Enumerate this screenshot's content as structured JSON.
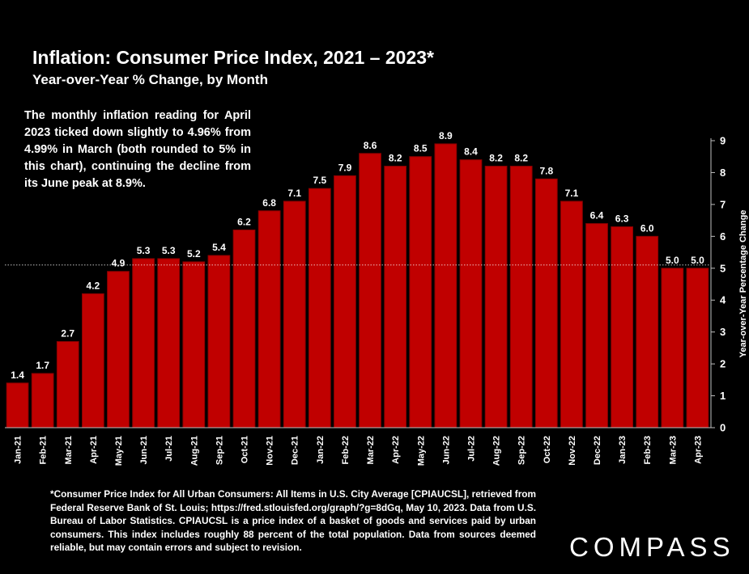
{
  "chart_data": {
    "type": "bar",
    "title": "Inflation: Consumer Price Index, 2021 – 2023*",
    "subtitle": "Year-over-Year % Change, by Month",
    "categories": [
      "Jan-21",
      "Feb-21",
      "Mar-21",
      "Apr-21",
      "May-21",
      "Jun-21",
      "Jul-21",
      "Aug-21",
      "Sep-21",
      "Oct-21",
      "Nov-21",
      "Dec-21",
      "Jan-22",
      "Feb-22",
      "Mar-22",
      "Apr-22",
      "May-22",
      "Jun-22",
      "Jul-22",
      "Aug-22",
      "Sep-22",
      "Oct-22",
      "Nov-22",
      "Dec-22",
      "Jan-23",
      "Feb-23",
      "Mar-23",
      "Apr-23"
    ],
    "values": [
      1.4,
      1.7,
      2.7,
      4.2,
      4.9,
      5.3,
      5.3,
      5.2,
      5.4,
      6.2,
      6.8,
      7.1,
      7.5,
      7.9,
      8.6,
      8.2,
      8.5,
      8.9,
      8.4,
      8.2,
      8.2,
      7.8,
      7.1,
      6.4,
      6.3,
      6.0,
      5.0,
      5.0
    ],
    "value_labels": [
      "1.4",
      "1.7",
      "2.7",
      "4.2",
      "4.9",
      "5.3",
      "5.3",
      "5.2",
      "5.4",
      "6.2",
      "6.8",
      "7.1",
      "7.5",
      "7.9",
      "8.6",
      "8.2",
      "8.5",
      "8.9",
      "8.4",
      "8.2",
      "8.2",
      "7.8",
      "7.1",
      "6.4",
      "6.3",
      "6.0",
      "5.0",
      "5.0"
    ],
    "xlabel": "",
    "ylabel": "Year-over-Year Percentage Change",
    "ylim": [
      0,
      9
    ],
    "yticks": [
      "0",
      "1",
      "2",
      "3",
      "4",
      "5",
      "6",
      "7",
      "8",
      "9"
    ],
    "y_axis_position": "right",
    "reference_line": 5.1,
    "grid": false,
    "bar_color": "#c00000",
    "bar_edge_color": "#8b0000",
    "reference_line_color": "#ffffff"
  },
  "annotation": "The monthly inflation reading for April 2023 ticked down slightly to 4.96% from 4.99% in March (both rounded to 5% in this chart), continuing the decline from its June peak at 8.9%.",
  "footnote": "*Consumer Price Index for All Urban Consumers: All Items in U.S. City Average [CPIAUCSL], retrieved from Federal Reserve Bank of St. Louis; https://fred.stlouisfed.org/graph/?g=8dGq, May 10, 2023. Data from U.S. Bureau of Labor Statistics. CPIAUCSL is a price index of a basket of goods and services paid by urban consumers. This index includes roughly 88 percent of the total population. Data from sources deemed reliable, but may contain errors and subject to revision.",
  "brand": "COMPASS",
  "colors": {
    "background": "#000000",
    "text": "#ffffff",
    "bar": "#c00000"
  }
}
